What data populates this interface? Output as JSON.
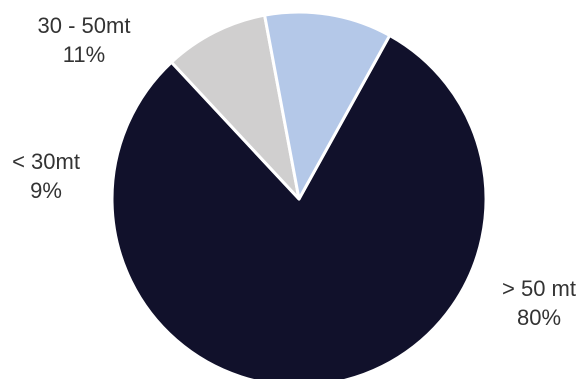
{
  "chart_data": {
    "type": "pie",
    "slices": [
      {
        "category": "> 50 mt",
        "value": 80,
        "label": "80%",
        "color": "#11112b"
      },
      {
        "category": "< 30mt",
        "value": 9,
        "label": "9%",
        "color": "#d0cfcf"
      },
      {
        "category": "30 - 50mt",
        "value": 11,
        "label": "11%",
        "color": "#b4c8e8"
      }
    ],
    "start_angle_deg": 29,
    "direction": "clockwise",
    "slice_border_color": "#ffffff",
    "legend": "none"
  }
}
